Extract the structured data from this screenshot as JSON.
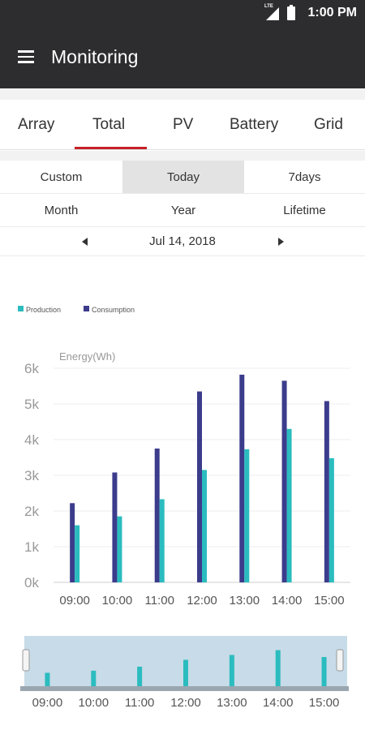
{
  "status_bar": {
    "network": "LTE",
    "time": "1:00 PM"
  },
  "app_bar": {
    "title": "Monitoring"
  },
  "tabs": [
    {
      "label": "Array",
      "active": false
    },
    {
      "label": "Total",
      "active": true
    },
    {
      "label": "PV",
      "active": false
    },
    {
      "label": "Battery",
      "active": false
    },
    {
      "label": "Grid",
      "active": false
    }
  ],
  "periods": [
    {
      "label": "Custom",
      "active": false
    },
    {
      "label": "Today",
      "active": true
    },
    {
      "label": "7days",
      "active": false
    },
    {
      "label": "Month",
      "active": false
    },
    {
      "label": "Year",
      "active": false
    },
    {
      "label": "Lifetime",
      "active": false
    }
  ],
  "date": "Jul 14, 2018",
  "colors": {
    "production": "#2bbcbf",
    "consumption": "#3c3c8c",
    "accent": "#c52026",
    "navigator_bg": "#c8dbe8"
  },
  "chart_data": {
    "type": "bar",
    "ylabel": "Energy(Wh)",
    "ylim": [
      0,
      6000
    ],
    "yticks": [
      "0k",
      "1k",
      "2k",
      "3k",
      "4k",
      "5k",
      "6k"
    ],
    "categories": [
      "09:00",
      "10:00",
      "11:00",
      "12:00",
      "13:00",
      "14:00",
      "15:00"
    ],
    "series": [
      {
        "name": "Production",
        "values": [
          1600,
          1850,
          2330,
          3150,
          3730,
          4300,
          3480
        ]
      },
      {
        "name": "Consumption",
        "values": [
          2220,
          3080,
          3750,
          5350,
          5820,
          5650,
          5080
        ]
      }
    ],
    "legend": "top-left",
    "navigator": {
      "series": "Production",
      "categories": [
        "09:00",
        "10:00",
        "11:00",
        "12:00",
        "13:00",
        "14:00",
        "15:00"
      ]
    }
  }
}
